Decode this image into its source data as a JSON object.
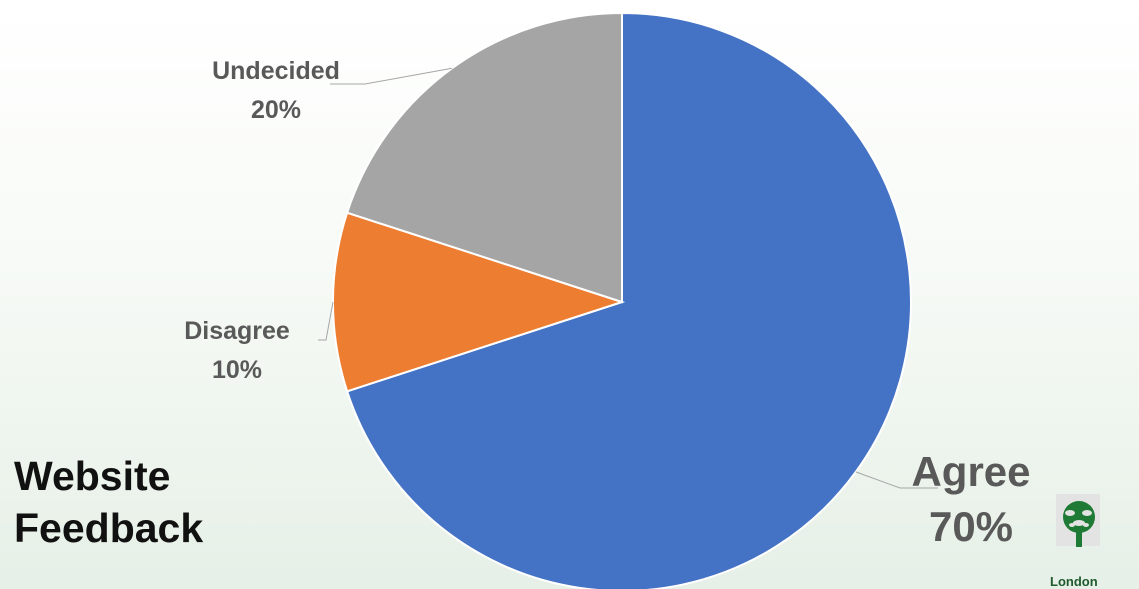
{
  "title": {
    "line1": "Website",
    "line2": "Feedback"
  },
  "logo": {
    "text": "London",
    "icon": "tree-icon",
    "color": "#1e7a34"
  },
  "chart_data": {
    "type": "pie",
    "title": "Website Feedback",
    "start_angle_deg": 0,
    "direction": "clockwise",
    "slices": [
      {
        "label": "Agree",
        "value": 70,
        "display": "70%",
        "color": "#4472C4"
      },
      {
        "label": "Disagree",
        "value": 10,
        "display": "10%",
        "color": "#ED7D31"
      },
      {
        "label": "Undecided",
        "value": 20,
        "display": "20%",
        "color": "#A5A5A5"
      }
    ],
    "legend": "none",
    "data_labels": "outside with leader lines"
  }
}
